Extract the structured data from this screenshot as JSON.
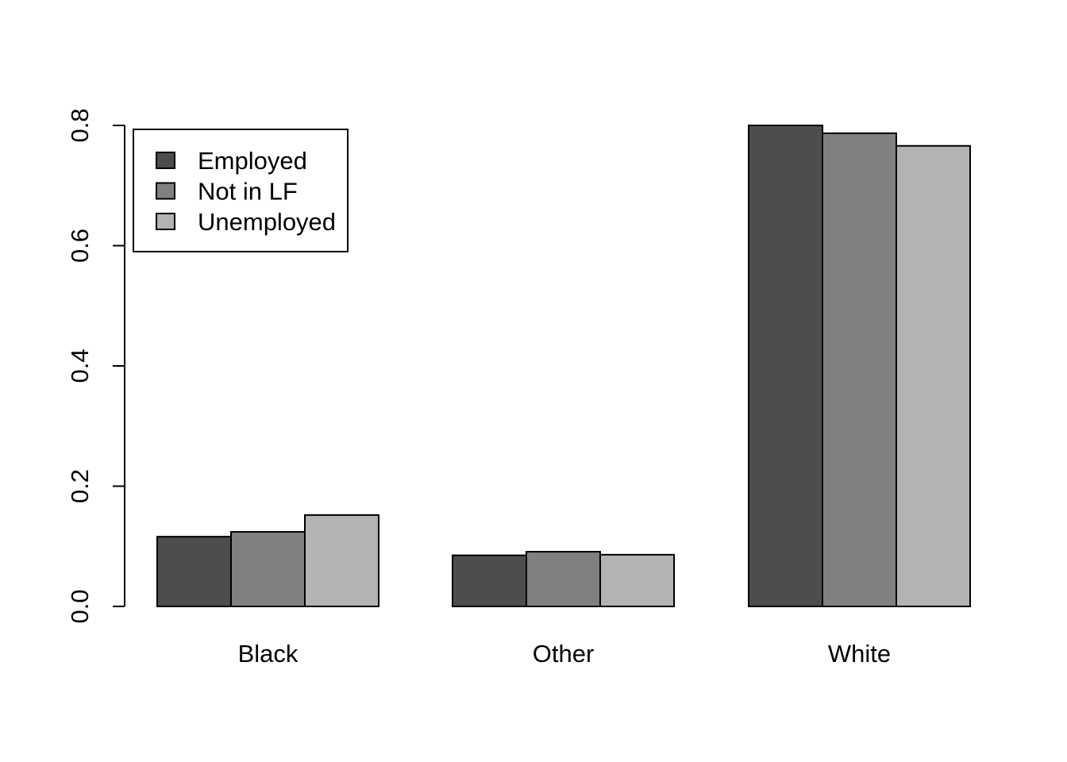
{
  "chart_data": {
    "type": "bar",
    "layout": "grouped",
    "title": "",
    "xlabel": "",
    "ylabel": "",
    "categories": [
      "Black",
      "Other",
      "White"
    ],
    "series": [
      {
        "name": "Employed",
        "color": "#4d4d4d",
        "values": [
          0.116,
          0.085,
          0.8
        ]
      },
      {
        "name": "Not in LF",
        "color": "#808080",
        "values": [
          0.124,
          0.091,
          0.787
        ]
      },
      {
        "name": "Unemployed",
        "color": "#b3b3b3",
        "values": [
          0.152,
          0.086,
          0.766
        ]
      }
    ],
    "ylim": [
      0,
      0.8
    ],
    "yticks": [
      "0.0",
      "0.2",
      "0.4",
      "0.6",
      "0.8"
    ],
    "grid": false,
    "legend": {
      "position": "top-left",
      "box": true
    }
  }
}
